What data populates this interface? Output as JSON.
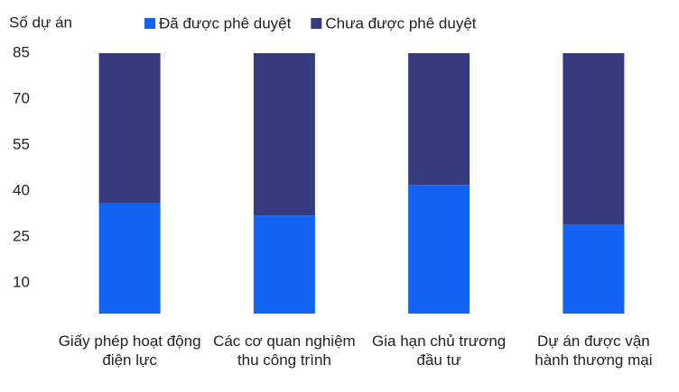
{
  "chart_data": {
    "type": "stacked_bar",
    "y_axis_label": "Số dự án",
    "categories": [
      "Giấy phép hoạt động điện lực",
      "Các cơ quan nghiệm thu công trình",
      "Gia hạn chủ trương đầu tư",
      "Dự án được vận hành thương mại"
    ],
    "series": [
      {
        "name": "Đã được phê duyệt",
        "color": "#1464f4",
        "values": [
          36,
          32,
          42,
          29
        ]
      },
      {
        "name": "Chưa được phê duyệt",
        "color": "#363b7e",
        "values": [
          49,
          53,
          43,
          56
        ]
      }
    ],
    "ylim": [
      0,
      85
    ],
    "yticks": [
      10,
      25,
      40,
      55,
      70,
      85
    ],
    "grid": false,
    "legend": "top"
  }
}
